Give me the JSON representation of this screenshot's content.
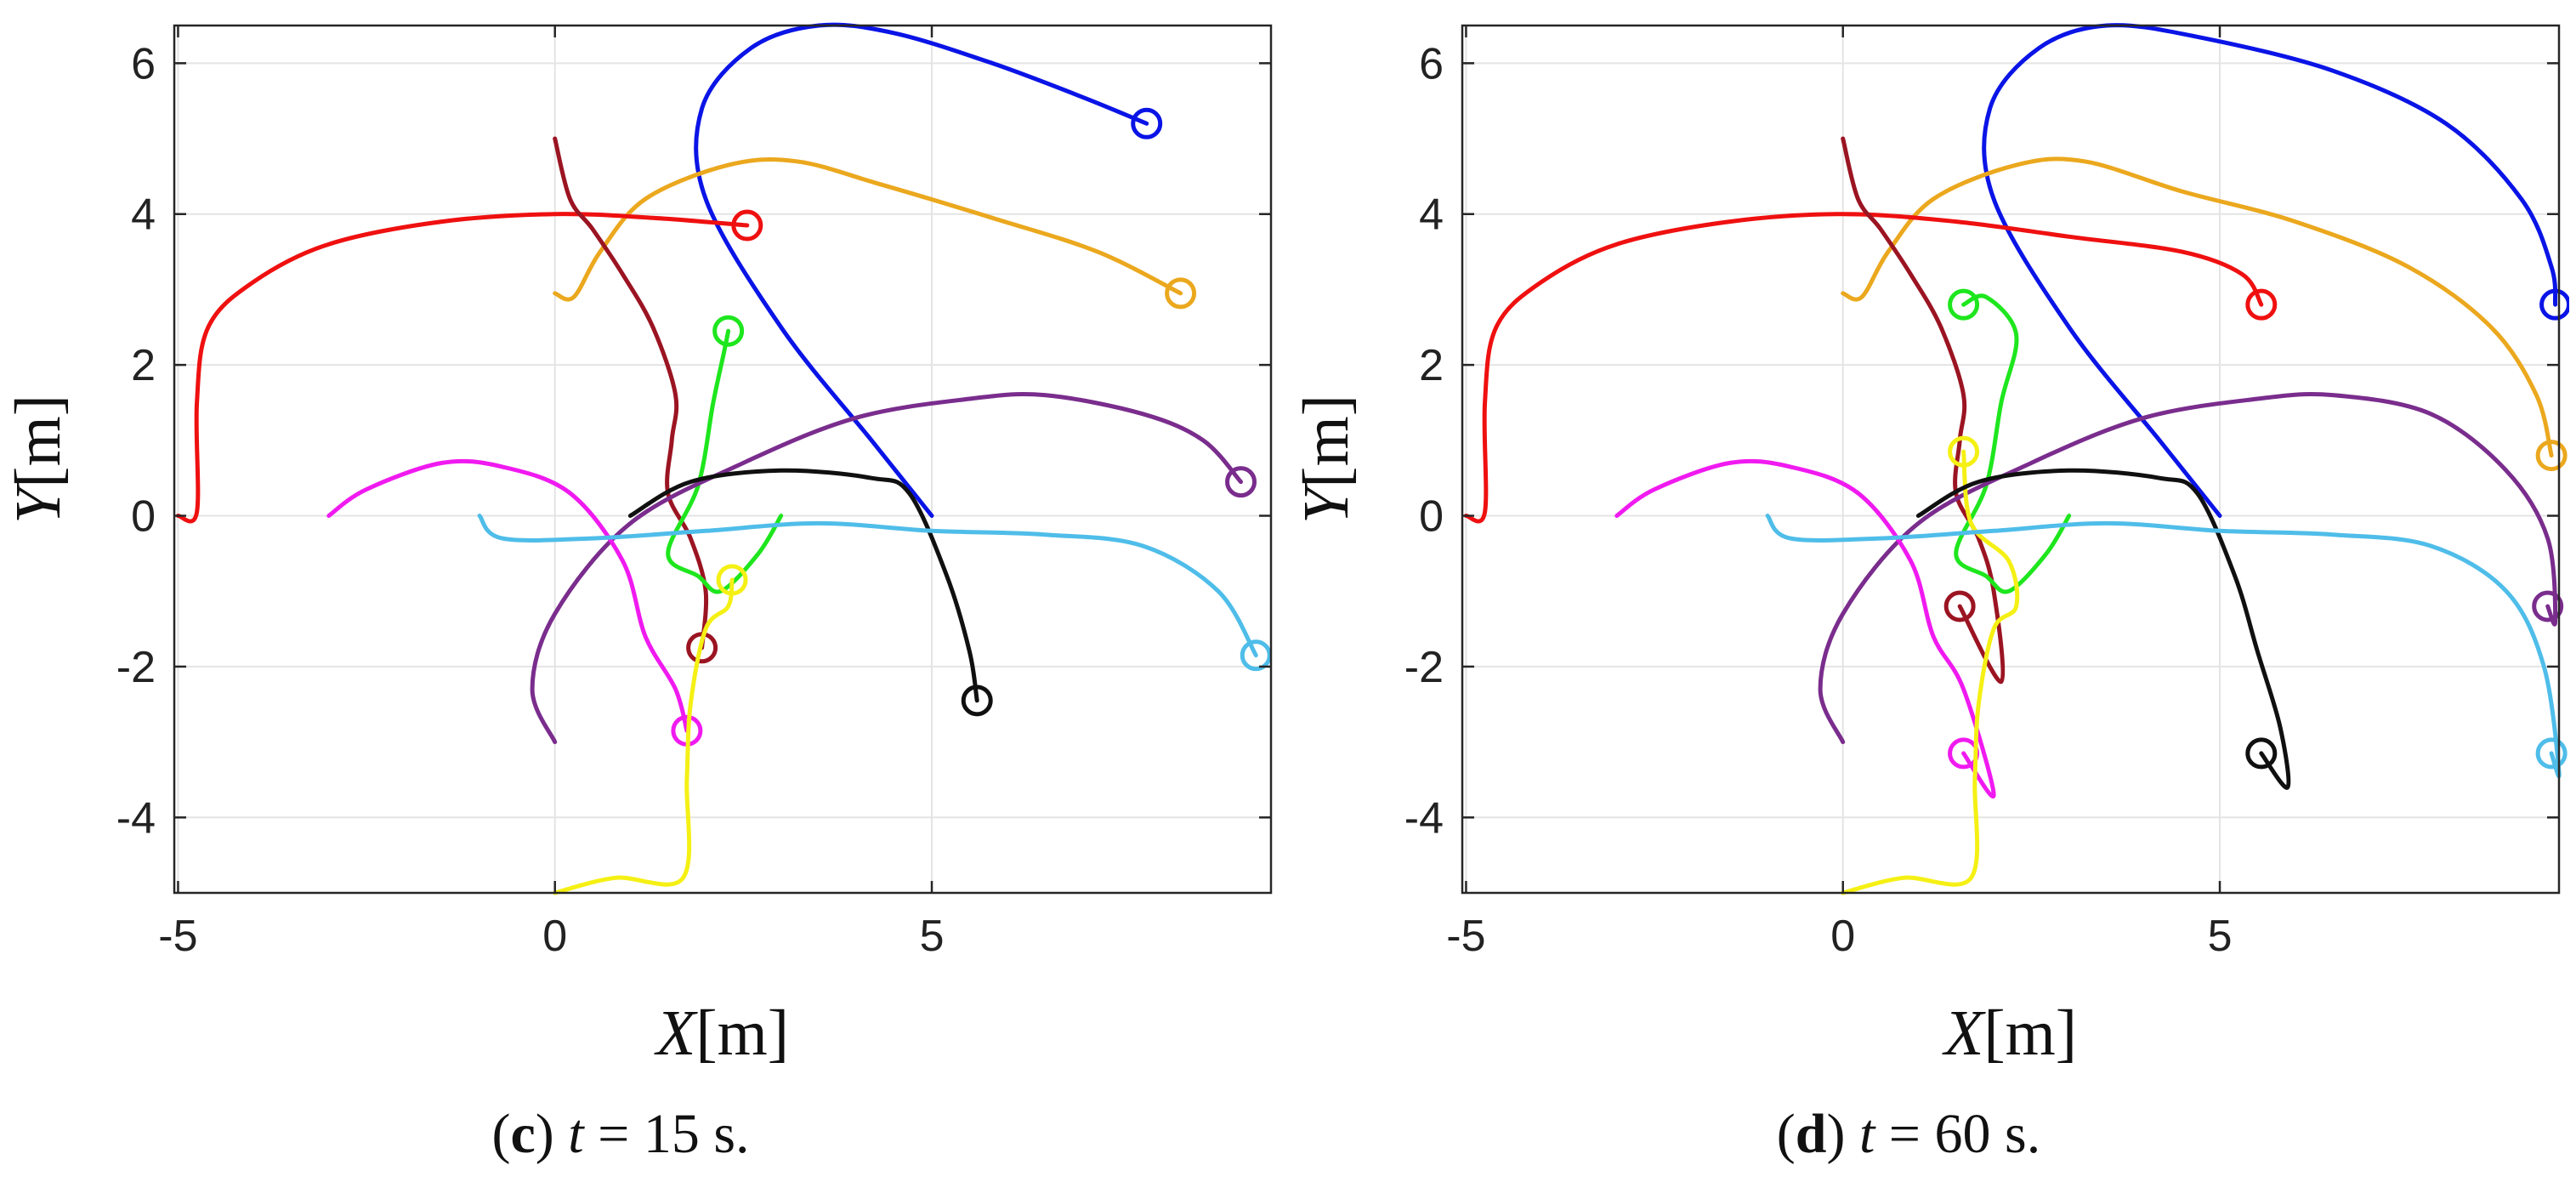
{
  "chart_data": [
    {
      "type": "line",
      "caption": {
        "letter": "c",
        "variable": "t",
        "equals": " = ",
        "value": "15",
        "unit": " s."
      },
      "xlabel": {
        "symbol": "X",
        "unit": "[m]"
      },
      "ylabel": {
        "symbol": "Y",
        "unit": "[m]"
      },
      "xlim": [
        -5.05,
        9.5
      ],
      "ylim": [
        -5,
        6.5
      ],
      "xticks": [
        -5,
        0,
        5
      ],
      "yticks": [
        -4,
        -2,
        0,
        2,
        4,
        6
      ],
      "grid": true,
      "series": [
        {
          "name": "blue",
          "color": "#0a14e6",
          "end": [
            7.85,
            5.2
          ],
          "points": [
            [
              5.0,
              0.0
            ],
            [
              4.2,
              1.0
            ],
            [
              3.0,
              2.5
            ],
            [
              2.0,
              4.2
            ],
            [
              1.95,
              5.4
            ],
            [
              2.6,
              6.2
            ],
            [
              3.5,
              6.5
            ],
            [
              4.5,
              6.4
            ],
            [
              5.8,
              6.0
            ],
            [
              7.0,
              5.55
            ],
            [
              7.85,
              5.2
            ]
          ]
        },
        {
          "name": "orange",
          "color": "#eba81e",
          "end": [
            8.3,
            2.95
          ],
          "points": [
            [
              0.0,
              2.95
            ],
            [
              0.25,
              2.9
            ],
            [
              0.6,
              3.5
            ],
            [
              1.2,
              4.2
            ],
            [
              2.3,
              4.65
            ],
            [
              3.2,
              4.7
            ],
            [
              4.3,
              4.4
            ],
            [
              5.8,
              3.95
            ],
            [
              7.2,
              3.5
            ],
            [
              8.3,
              2.95
            ]
          ]
        },
        {
          "name": "red",
          "color": "#ef1010",
          "end": [
            2.55,
            3.85
          ],
          "points": [
            [
              -5.0,
              0.0
            ],
            [
              -4.75,
              0.05
            ],
            [
              -4.75,
              1.5
            ],
            [
              -4.6,
              2.5
            ],
            [
              -4.0,
              3.1
            ],
            [
              -3.0,
              3.6
            ],
            [
              -1.5,
              3.9
            ],
            [
              0.0,
              4.0
            ],
            [
              1.3,
              3.95
            ],
            [
              2.55,
              3.85
            ]
          ]
        },
        {
          "name": "darkred",
          "color": "#9b1422",
          "end": [
            1.95,
            -1.75
          ],
          "points": [
            [
              0.0,
              5.0
            ],
            [
              0.2,
              4.2
            ],
            [
              0.5,
              3.8
            ],
            [
              0.9,
              3.2
            ],
            [
              1.3,
              2.5
            ],
            [
              1.6,
              1.6
            ],
            [
              1.55,
              1.0
            ],
            [
              1.5,
              0.3
            ],
            [
              1.8,
              -0.3
            ],
            [
              2.0,
              -1.0
            ],
            [
              1.95,
              -1.75
            ]
          ]
        },
        {
          "name": "green",
          "color": "#1ee61e",
          "end": [
            2.3,
            2.45
          ],
          "points": [
            [
              3.0,
              0.0
            ],
            [
              2.7,
              -0.5
            ],
            [
              2.2,
              -1.0
            ],
            [
              1.9,
              -0.8
            ],
            [
              1.5,
              -0.5
            ],
            [
              1.9,
              0.4
            ],
            [
              2.1,
              1.5
            ],
            [
              2.25,
              2.2
            ],
            [
              2.3,
              2.45
            ]
          ]
        },
        {
          "name": "purple",
          "color": "#7a2d8d",
          "end": [
            9.1,
            0.45
          ],
          "points": [
            [
              0.0,
              -3.0
            ],
            [
              -0.3,
              -2.3
            ],
            [
              0.0,
              -1.3
            ],
            [
              1.0,
              -0.1
            ],
            [
              2.5,
              0.7
            ],
            [
              4.0,
              1.3
            ],
            [
              5.5,
              1.55
            ],
            [
              6.5,
              1.6
            ],
            [
              7.8,
              1.35
            ],
            [
              8.6,
              1.0
            ],
            [
              9.1,
              0.45
            ]
          ]
        },
        {
          "name": "magenta",
          "color": "#f01af0",
          "end": [
            1.75,
            -2.85
          ],
          "points": [
            [
              -3.0,
              0.0
            ],
            [
              -2.5,
              0.35
            ],
            [
              -1.5,
              0.7
            ],
            [
              -0.7,
              0.65
            ],
            [
              0.2,
              0.3
            ],
            [
              0.9,
              -0.6
            ],
            [
              1.2,
              -1.6
            ],
            [
              1.6,
              -2.3
            ],
            [
              1.75,
              -2.85
            ]
          ]
        },
        {
          "name": "yellow",
          "color": "#f5f014",
          "end": [
            2.35,
            -0.85
          ],
          "points": [
            [
              0.0,
              -5.0
            ],
            [
              0.8,
              -4.8
            ],
            [
              1.7,
              -4.8
            ],
            [
              1.75,
              -3.5
            ],
            [
              1.8,
              -2.5
            ],
            [
              2.0,
              -1.5
            ],
            [
              2.3,
              -1.2
            ],
            [
              2.35,
              -0.85
            ]
          ]
        },
        {
          "name": "black",
          "color": "#101010",
          "end": [
            5.6,
            -2.45
          ],
          "points": [
            [
              1.0,
              0.0
            ],
            [
              1.8,
              0.45
            ],
            [
              3.0,
              0.6
            ],
            [
              4.2,
              0.5
            ],
            [
              4.7,
              0.3
            ],
            [
              5.2,
              -0.8
            ],
            [
              5.5,
              -1.8
            ],
            [
              5.6,
              -2.45
            ]
          ]
        },
        {
          "name": "lightblue",
          "color": "#4fbde9",
          "end": [
            9.3,
            -1.85
          ],
          "points": [
            [
              -1.0,
              0.0
            ],
            [
              -0.7,
              -0.3
            ],
            [
              0.5,
              -0.3
            ],
            [
              2.0,
              -0.2
            ],
            [
              3.5,
              -0.1
            ],
            [
              5.0,
              -0.2
            ],
            [
              6.5,
              -0.25
            ],
            [
              7.8,
              -0.4
            ],
            [
              8.8,
              -1.0
            ],
            [
              9.3,
              -1.85
            ]
          ]
        }
      ]
    },
    {
      "type": "line",
      "caption": {
        "letter": "d",
        "variable": "t",
        "equals": " = ",
        "value": "60",
        "unit": " s."
      },
      "xlabel": {
        "symbol": "X",
        "unit": "[m]"
      },
      "ylabel": {
        "symbol": "Y",
        "unit": "[m]"
      },
      "xlim": [
        -5.05,
        9.5
      ],
      "ylim": [
        -5,
        6.5
      ],
      "xticks": [
        -5,
        0,
        5
      ],
      "yticks": [
        -4,
        -2,
        0,
        2,
        4,
        6
      ],
      "grid": true,
      "series": [
        {
          "name": "blue",
          "color": "#0a14e6",
          "end": [
            9.45,
            2.8
          ],
          "points": [
            [
              5.0,
              0.0
            ],
            [
              4.2,
              1.0
            ],
            [
              3.0,
              2.5
            ],
            [
              2.0,
              4.2
            ],
            [
              1.95,
              5.4
            ],
            [
              2.6,
              6.2
            ],
            [
              3.5,
              6.5
            ],
            [
              4.7,
              6.35
            ],
            [
              6.5,
              5.9
            ],
            [
              8.0,
              5.2
            ],
            [
              9.0,
              4.2
            ],
            [
              9.4,
              3.3
            ],
            [
              9.45,
              2.8
            ]
          ]
        },
        {
          "name": "orange",
          "color": "#eba81e",
          "end": [
            9.4,
            0.8
          ],
          "points": [
            [
              0.0,
              2.95
            ],
            [
              0.25,
              2.9
            ],
            [
              0.6,
              3.5
            ],
            [
              1.2,
              4.2
            ],
            [
              2.3,
              4.65
            ],
            [
              3.2,
              4.7
            ],
            [
              4.5,
              4.3
            ],
            [
              6.0,
              3.9
            ],
            [
              7.5,
              3.3
            ],
            [
              8.6,
              2.5
            ],
            [
              9.2,
              1.6
            ],
            [
              9.4,
              0.8
            ]
          ]
        },
        {
          "name": "red",
          "color": "#ef1010",
          "end": [
            5.55,
            2.8
          ],
          "points": [
            [
              -5.0,
              0.0
            ],
            [
              -4.75,
              0.05
            ],
            [
              -4.75,
              1.5
            ],
            [
              -4.6,
              2.5
            ],
            [
              -4.0,
              3.1
            ],
            [
              -3.0,
              3.6
            ],
            [
              -1.5,
              3.9
            ],
            [
              0.0,
              4.0
            ],
            [
              1.5,
              3.9
            ],
            [
              3.0,
              3.7
            ],
            [
              4.5,
              3.5
            ],
            [
              5.3,
              3.2
            ],
            [
              5.55,
              2.8
            ]
          ]
        },
        {
          "name": "darkred",
          "color": "#9b1422",
          "end": [
            1.55,
            -1.2
          ],
          "points": [
            [
              0.0,
              5.0
            ],
            [
              0.2,
              4.2
            ],
            [
              0.5,
              3.8
            ],
            [
              0.9,
              3.2
            ],
            [
              1.3,
              2.5
            ],
            [
              1.6,
              1.6
            ],
            [
              1.55,
              1.0
            ],
            [
              1.5,
              0.3
            ],
            [
              1.8,
              -0.3
            ],
            [
              2.0,
              -1.0
            ],
            [
              2.1,
              -2.2
            ],
            [
              1.55,
              -1.2
            ]
          ]
        },
        {
          "name": "green",
          "color": "#1ee61e",
          "end": [
            1.6,
            2.8
          ],
          "points": [
            [
              3.0,
              0.0
            ],
            [
              2.7,
              -0.5
            ],
            [
              2.2,
              -1.0
            ],
            [
              1.9,
              -0.8
            ],
            [
              1.5,
              -0.5
            ],
            [
              1.9,
              0.4
            ],
            [
              2.1,
              1.5
            ],
            [
              2.3,
              2.4
            ],
            [
              1.9,
              2.9
            ],
            [
              1.6,
              2.8
            ]
          ]
        },
        {
          "name": "purple",
          "color": "#7a2d8d",
          "end": [
            9.35,
            -1.2
          ],
          "points": [
            [
              0.0,
              -3.0
            ],
            [
              -0.3,
              -2.3
            ],
            [
              0.0,
              -1.3
            ],
            [
              1.0,
              -0.1
            ],
            [
              2.5,
              0.7
            ],
            [
              4.0,
              1.3
            ],
            [
              5.5,
              1.55
            ],
            [
              6.5,
              1.6
            ],
            [
              7.8,
              1.35
            ],
            [
              8.8,
              0.6
            ],
            [
              9.35,
              -0.3
            ],
            [
              9.45,
              -1.4
            ],
            [
              9.35,
              -1.2
            ]
          ]
        },
        {
          "name": "magenta",
          "color": "#f01af0",
          "end": [
            1.6,
            -3.15
          ],
          "points": [
            [
              -3.0,
              0.0
            ],
            [
              -2.5,
              0.35
            ],
            [
              -1.5,
              0.7
            ],
            [
              -0.7,
              0.65
            ],
            [
              0.2,
              0.3
            ],
            [
              0.9,
              -0.6
            ],
            [
              1.2,
              -1.6
            ],
            [
              1.6,
              -2.3
            ],
            [
              2.0,
              -3.7
            ],
            [
              1.6,
              -3.15
            ]
          ]
        },
        {
          "name": "yellow",
          "color": "#f5f014",
          "end": [
            1.6,
            0.85
          ],
          "points": [
            [
              0.0,
              -5.0
            ],
            [
              0.8,
              -4.8
            ],
            [
              1.7,
              -4.8
            ],
            [
              1.75,
              -3.5
            ],
            [
              1.8,
              -2.5
            ],
            [
              2.0,
              -1.5
            ],
            [
              2.3,
              -1.2
            ],
            [
              2.2,
              -0.6
            ],
            [
              1.7,
              -0.1
            ],
            [
              1.6,
              0.85
            ]
          ]
        },
        {
          "name": "black",
          "color": "#101010",
          "end": [
            5.55,
            -3.15
          ],
          "points": [
            [
              1.0,
              0.0
            ],
            [
              1.8,
              0.45
            ],
            [
              3.0,
              0.6
            ],
            [
              4.2,
              0.5
            ],
            [
              4.7,
              0.3
            ],
            [
              5.2,
              -0.8
            ],
            [
              5.5,
              -1.8
            ],
            [
              5.8,
              -2.8
            ],
            [
              5.9,
              -3.6
            ],
            [
              5.55,
              -3.15
            ]
          ]
        },
        {
          "name": "lightblue",
          "color": "#4fbde9",
          "end": [
            9.4,
            -3.15
          ],
          "points": [
            [
              -1.0,
              0.0
            ],
            [
              -0.7,
              -0.3
            ],
            [
              0.5,
              -0.3
            ],
            [
              2.0,
              -0.2
            ],
            [
              3.5,
              -0.1
            ],
            [
              5.0,
              -0.2
            ],
            [
              6.5,
              -0.25
            ],
            [
              7.8,
              -0.4
            ],
            [
              8.8,
              -1.0
            ],
            [
              9.3,
              -2.0
            ],
            [
              9.5,
              -3.4
            ],
            [
              9.4,
              -3.15
            ]
          ]
        }
      ]
    }
  ]
}
